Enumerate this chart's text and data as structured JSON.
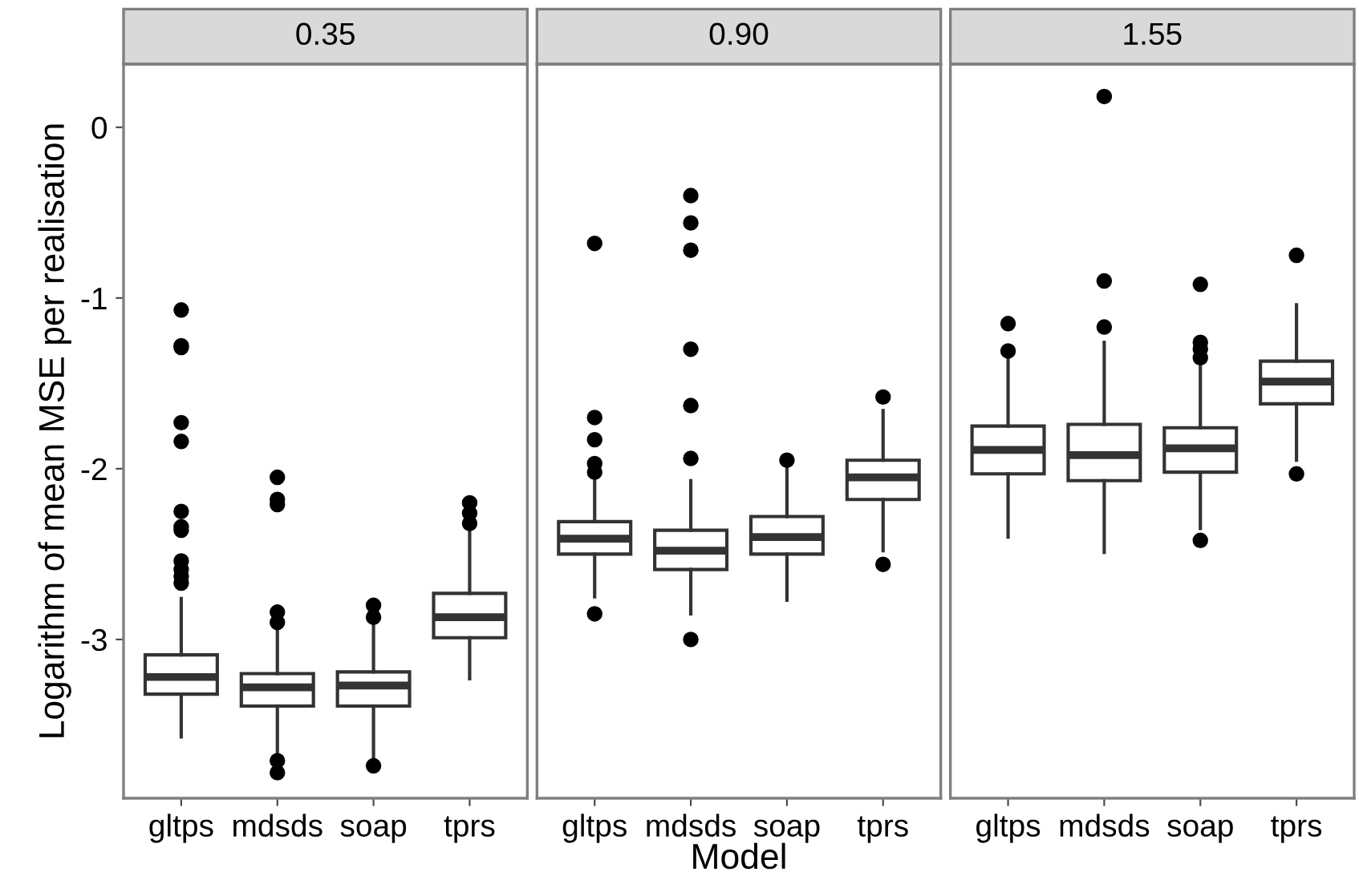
{
  "chart_data": [
    {
      "type": "box",
      "title": "0.35",
      "ylabel": "Logarithm of mean MSE per realisation",
      "categories": [
        "gltps",
        "mdsds",
        "soap",
        "tprs"
      ],
      "ylim": [
        -3.93,
        0.37
      ],
      "yticks": [
        0,
        -1,
        -2,
        -3
      ],
      "grid": false,
      "boxes": [
        {
          "low": -3.57,
          "q1": -3.32,
          "median": -3.22,
          "q3": -3.09,
          "high": -2.76,
          "outliers": [
            -1.07,
            -1.28,
            -1.29,
            -1.73,
            -1.84,
            -2.25,
            -2.34,
            -2.36,
            -2.54,
            -2.59,
            -2.63,
            -2.67
          ]
        },
        {
          "low": -3.67,
          "q1": -3.39,
          "median": -3.28,
          "q3": -3.2,
          "high": -2.93,
          "outliers": [
            -2.05,
            -2.18,
            -2.21,
            -2.84,
            -2.9,
            -3.71,
            -3.78
          ]
        },
        {
          "low": -3.7,
          "q1": -3.39,
          "median": -3.27,
          "q3": -3.19,
          "high": -2.92,
          "outliers": [
            -2.8,
            -2.87,
            -3.74
          ]
        },
        {
          "low": -3.23,
          "q1": -2.99,
          "median": -2.87,
          "q3": -2.73,
          "high": -2.37,
          "outliers": [
            -2.2,
            -2.26,
            -2.32
          ]
        }
      ]
    },
    {
      "type": "box",
      "title": "0.90",
      "xlabel": "Model",
      "categories": [
        "gltps",
        "mdsds",
        "soap",
        "tprs"
      ],
      "ylim": [
        -3.93,
        0.37
      ],
      "tick_labels": "x",
      "grid": false,
      "boxes": [
        {
          "low": -2.75,
          "q1": -2.5,
          "median": -2.41,
          "q3": -2.31,
          "high": -2.07,
          "outliers": [
            -0.68,
            -1.7,
            -1.83,
            -1.97,
            -2.02,
            -2.85
          ]
        },
        {
          "low": -2.85,
          "q1": -2.59,
          "median": -2.48,
          "q3": -2.36,
          "high": -2.07,
          "outliers": [
            -0.4,
            -0.56,
            -0.72,
            -1.3,
            -1.63,
            -1.94,
            -3.0
          ]
        },
        {
          "low": -2.77,
          "q1": -2.5,
          "median": -2.4,
          "q3": -2.28,
          "high": -1.99,
          "outliers": [
            -1.95
          ]
        },
        {
          "low": -2.48,
          "q1": -2.18,
          "median": -2.05,
          "q3": -1.95,
          "high": -1.66,
          "outliers": [
            -1.58,
            -2.56
          ]
        }
      ]
    },
    {
      "type": "box",
      "title": "1.55",
      "categories": [
        "gltps",
        "mdsds",
        "soap",
        "tprs"
      ],
      "ylim": [
        -3.93,
        0.37
      ],
      "tick_labels": "x",
      "grid": false,
      "boxes": [
        {
          "low": -2.4,
          "q1": -2.03,
          "median": -1.89,
          "q3": -1.75,
          "high": -1.34,
          "outliers": [
            -1.15,
            -1.31
          ]
        },
        {
          "low": -2.49,
          "q1": -2.07,
          "median": -1.92,
          "q3": -1.74,
          "high": -1.26,
          "outliers": [
            0.18,
            -0.9,
            -1.17
          ]
        },
        {
          "low": -2.35,
          "q1": -2.02,
          "median": -1.88,
          "q3": -1.76,
          "high": -1.38,
          "outliers": [
            -0.92,
            -1.26,
            -1.3,
            -1.35,
            -2.42
          ]
        },
        {
          "low": -1.95,
          "q1": -1.62,
          "median": -1.49,
          "q3": -1.37,
          "high": -1.04,
          "outliers": [
            -0.75,
            -2.03
          ]
        }
      ]
    }
  ]
}
